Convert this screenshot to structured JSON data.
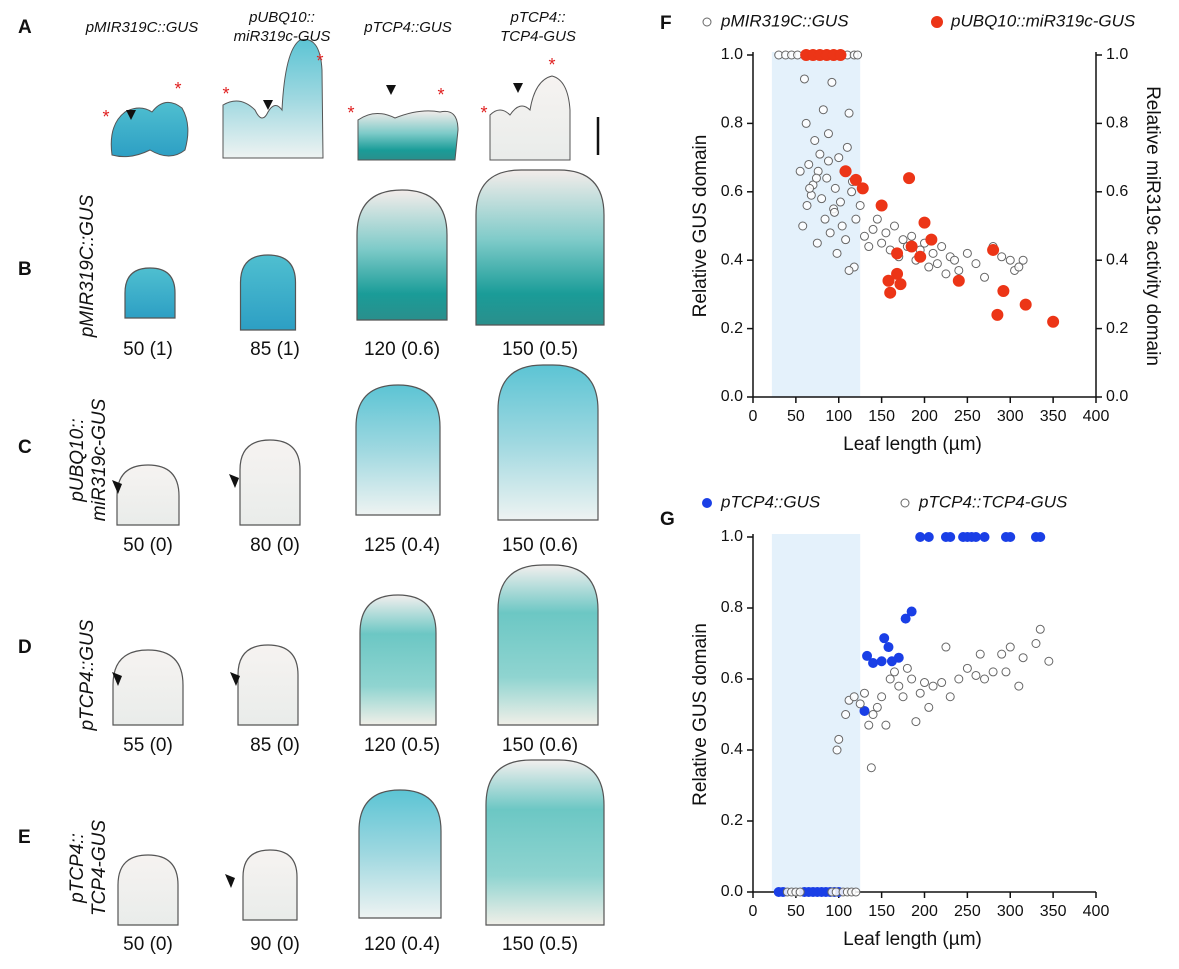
{
  "figure": {
    "panel_a": "A",
    "column_headers": [
      [
        "pMIR319C::GUS"
      ],
      [
        "pUBQ10::",
        "miR319c-GUS"
      ],
      [
        "pTCP4::GUS"
      ],
      [
        "pTCP4::",
        "TCP4-GUS"
      ]
    ],
    "rows": [
      {
        "panel": "B",
        "label": [
          "pMIR319C::GUS"
        ],
        "captions": [
          "50 (1)",
          "85 (1)",
          "120 (0.6)",
          "150 (0.5)"
        ]
      },
      {
        "panel": "C",
        "label": [
          "pUBQ10::",
          "miR319c-GUS"
        ],
        "captions": [
          "50 (0)",
          "80 (0)",
          "125 (0.4)",
          "150 (0.6)"
        ]
      },
      {
        "panel": "D",
        "label": [
          "pTCP4::GUS"
        ],
        "captions": [
          "55 (0)",
          "85 (0)",
          "120 (0.5)",
          "150 (0.6)"
        ]
      },
      {
        "panel": "E",
        "label": [
          "pTCP4::",
          "TCP4-GUS"
        ],
        "captions": [
          "50 (0)",
          "90 (0)",
          "120 (0.4)",
          "150 (0.5)"
        ]
      }
    ]
  },
  "chart_data": [
    {
      "type": "scatter",
      "panel": "F",
      "xlabel": "Leaf length (µm)",
      "ylabel": "Relative GUS domain",
      "y2label": "Relative miR319c activity domain",
      "xlim": [
        0,
        400
      ],
      "xticks": [
        0,
        50,
        100,
        150,
        200,
        250,
        300,
        350,
        400
      ],
      "ylim": [
        0,
        1
      ],
      "yticks": [
        {
          "value": 0,
          "label": "0.0"
        },
        {
          "value": 0.2,
          "label": "0.2"
        },
        {
          "value": 0.4,
          "label": "0.4"
        },
        {
          "value": 0.6,
          "label": "0.6"
        },
        {
          "value": 0.8,
          "label": "0.8"
        },
        {
          "value": 1,
          "label": "1.0"
        }
      ],
      "y2lim": [
        0,
        1
      ],
      "y2ticks": [
        {
          "value": 0,
          "label": "0.0"
        },
        {
          "value": 0.2,
          "label": "0.2"
        },
        {
          "value": 0.4,
          "label": "0.4"
        },
        {
          "value": 0.6,
          "label": "0.6"
        },
        {
          "value": 0.8,
          "label": "0.8"
        },
        {
          "value": 1,
          "label": "1.0"
        }
      ],
      "highlight": [
        22,
        125
      ],
      "series": [
        {
          "name": "pMIR319C::GUS",
          "color": "#ffffff",
          "x": [
            30,
            38,
            45,
            52,
            110,
            118,
            122,
            60,
            62,
            65,
            68,
            70,
            72,
            75,
            76,
            78,
            80,
            82,
            84,
            86,
            88,
            90,
            92,
            94,
            96,
            98,
            100,
            102,
            104,
            106,
            108,
            110,
            112,
            115,
            118,
            120,
            125,
            130,
            135,
            140,
            145,
            150,
            155,
            160,
            165,
            170,
            175,
            180,
            185,
            190,
            195,
            200,
            205,
            210,
            215,
            220,
            225,
            230,
            235,
            240,
            250,
            260,
            270,
            280,
            290,
            300,
            305,
            310,
            315,
            55,
            58,
            63,
            66,
            74,
            88,
            95,
            112,
            116
          ],
          "values": [
            1,
            1,
            1,
            1,
            1,
            1,
            1,
            0.93,
            0.8,
            0.68,
            0.59,
            0.62,
            0.75,
            0.45,
            0.66,
            0.71,
            0.58,
            0.84,
            0.52,
            0.64,
            0.77,
            0.48,
            0.92,
            0.55,
            0.61,
            0.42,
            0.7,
            0.57,
            0.5,
            0.66,
            0.46,
            0.73,
            0.83,
            0.6,
            0.38,
            0.52,
            0.56,
            0.47,
            0.44,
            0.49,
            0.52,
            0.45,
            0.48,
            0.43,
            0.5,
            0.41,
            0.46,
            0.44,
            0.47,
            0.4,
            0.43,
            0.45,
            0.38,
            0.42,
            0.39,
            0.44,
            0.36,
            0.41,
            0.4,
            0.37,
            0.42,
            0.39,
            0.35,
            0.44,
            0.41,
            0.4,
            0.37,
            0.38,
            0.4,
            0.66,
            0.5,
            0.56,
            0.61,
            0.64,
            0.69,
            0.54,
            0.37,
            0.63
          ]
        },
        {
          "name": "pUBQ10::miR319c-GUS",
          "color": "#ec3517",
          "axis": "y2",
          "x": [
            62,
            70,
            78,
            86,
            94,
            102,
            108,
            120,
            128,
            150,
            158,
            160,
            168,
            168,
            172,
            182,
            185,
            195,
            200,
            208,
            240,
            280,
            285,
            292,
            318,
            350
          ],
          "values": [
            1,
            1,
            1,
            1,
            1,
            1,
            0.66,
            0.635,
            0.61,
            0.56,
            0.34,
            0.305,
            0.42,
            0.36,
            0.33,
            0.64,
            0.44,
            0.41,
            0.51,
            0.46,
            0.34,
            0.43,
            0.24,
            0.31,
            0.27,
            0.22
          ]
        }
      ]
    },
    {
      "type": "scatter",
      "panel": "G",
      "xlabel": "Leaf length (µm)",
      "ylabel": "Relative GUS domain",
      "xlim": [
        0,
        400
      ],
      "xticks": [
        0,
        50,
        100,
        150,
        200,
        250,
        300,
        350,
        400
      ],
      "ylim": [
        0,
        1
      ],
      "yticks": [
        {
          "value": 0,
          "label": "0.0"
        },
        {
          "value": 0.2,
          "label": "0.2"
        },
        {
          "value": 0.4,
          "label": "0.4"
        },
        {
          "value": 0.6,
          "label": "0.6"
        },
        {
          "value": 0.8,
          "label": "0.8"
        },
        {
          "value": 1,
          "label": "1.0"
        }
      ],
      "highlight": [
        22,
        125
      ],
      "series": [
        {
          "name": "pTCP4::GUS",
          "color": "#1a3fe6",
          "x": [
            30,
            35,
            60,
            65,
            70,
            75,
            80,
            85,
            90,
            95,
            100,
            130,
            133,
            140,
            150,
            153,
            158,
            162,
            170,
            178,
            185,
            195,
            205,
            225,
            230,
            245,
            250,
            255,
            260,
            270,
            295,
            300,
            330,
            335
          ],
          "values": [
            0,
            0,
            0,
            0,
            0,
            0,
            0,
            0,
            0,
            0,
            0,
            0.51,
            0.665,
            0.645,
            0.65,
            0.715,
            0.69,
            0.65,
            0.66,
            0.77,
            0.79,
            1,
            1,
            1,
            1,
            1,
            1,
            1,
            1,
            1,
            1,
            1,
            1,
            1
          ]
        },
        {
          "name": "pTCP4::TCP4-GUS",
          "color": "#ffffff",
          "x": [
            40,
            45,
            50,
            55,
            92,
            97,
            105,
            110,
            115,
            120,
            98,
            100,
            108,
            112,
            118,
            125,
            130,
            135,
            138,
            140,
            145,
            150,
            155,
            160,
            165,
            170,
            175,
            180,
            185,
            190,
            195,
            200,
            205,
            210,
            220,
            225,
            230,
            240,
            250,
            260,
            265,
            270,
            280,
            290,
            295,
            300,
            310,
            315,
            330,
            335,
            345
          ],
          "values": [
            0,
            0,
            0,
            0,
            0,
            0,
            0,
            0,
            0,
            0,
            0.4,
            0.43,
            0.5,
            0.54,
            0.55,
            0.53,
            0.56,
            0.47,
            0.35,
            0.5,
            0.52,
            0.55,
            0.47,
            0.6,
            0.62,
            0.58,
            0.55,
            0.63,
            0.6,
            0.48,
            0.56,
            0.59,
            0.52,
            0.58,
            0.59,
            0.69,
            0.55,
            0.6,
            0.63,
            0.61,
            0.67,
            0.6,
            0.62,
            0.67,
            0.62,
            0.69,
            0.58,
            0.66,
            0.7,
            0.74,
            0.65
          ]
        }
      ]
    }
  ]
}
